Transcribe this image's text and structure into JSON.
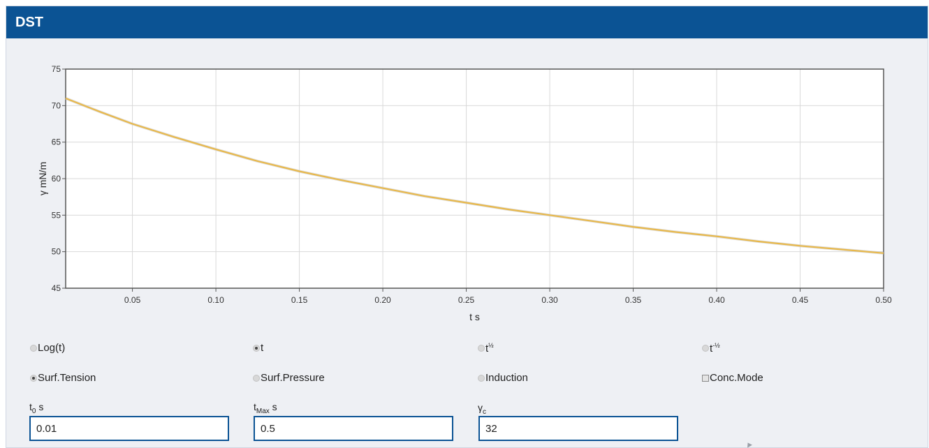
{
  "window": {
    "title": "DST"
  },
  "chart_data": {
    "type": "line",
    "xlabel": "t s",
    "ylabel": "γ mN/m",
    "xlim": [
      0.01,
      0.5
    ],
    "ylim": [
      45,
      75
    ],
    "x_ticks": [
      "0.05",
      "0.10",
      "0.15",
      "0.20",
      "0.25",
      "0.30",
      "0.35",
      "0.40",
      "0.45",
      "0.50"
    ],
    "y_ticks": [
      "45",
      "50",
      "55",
      "60",
      "65",
      "70",
      "75"
    ],
    "grid": true,
    "line_color": "#e8b84a",
    "series": [
      {
        "x": [
          0.01,
          0.03,
          0.05,
          0.075,
          0.1,
          0.125,
          0.15,
          0.175,
          0.2,
          0.225,
          0.25,
          0.275,
          0.3,
          0.325,
          0.35,
          0.375,
          0.4,
          0.425,
          0.45,
          0.475,
          0.5
        ],
        "values": [
          71.0,
          69.2,
          67.5,
          65.7,
          64.0,
          62.4,
          61.0,
          59.8,
          58.7,
          57.6,
          56.7,
          55.8,
          55.0,
          54.2,
          53.4,
          52.7,
          52.1,
          51.4,
          50.8,
          50.3,
          49.8
        ]
      }
    ]
  },
  "axis_options": [
    {
      "label": "Log(t)",
      "sup": "",
      "selected": false
    },
    {
      "label": "t",
      "sup": "",
      "selected": true
    },
    {
      "label": "t",
      "sup": "½",
      "selected": false
    },
    {
      "label": "t",
      "sup": "-½",
      "selected": false
    }
  ],
  "mode_options": [
    {
      "label": "Surf.Tension",
      "selected": true
    },
    {
      "label": "Surf.Pressure",
      "selected": false
    },
    {
      "label": "Induction",
      "selected": false
    }
  ],
  "conc_mode": {
    "label": "Conc.Mode",
    "checked": false
  },
  "fields": {
    "t0": {
      "label_main": "t",
      "label_sub": "0",
      "label_unit": " s",
      "value": "0.01"
    },
    "tmax": {
      "label_main": "t",
      "label_sub": "Max",
      "label_unit": " s",
      "value": "0.5"
    },
    "gc": {
      "label_main": "γ",
      "label_sub": "c",
      "label_unit": "",
      "value": "32"
    }
  }
}
